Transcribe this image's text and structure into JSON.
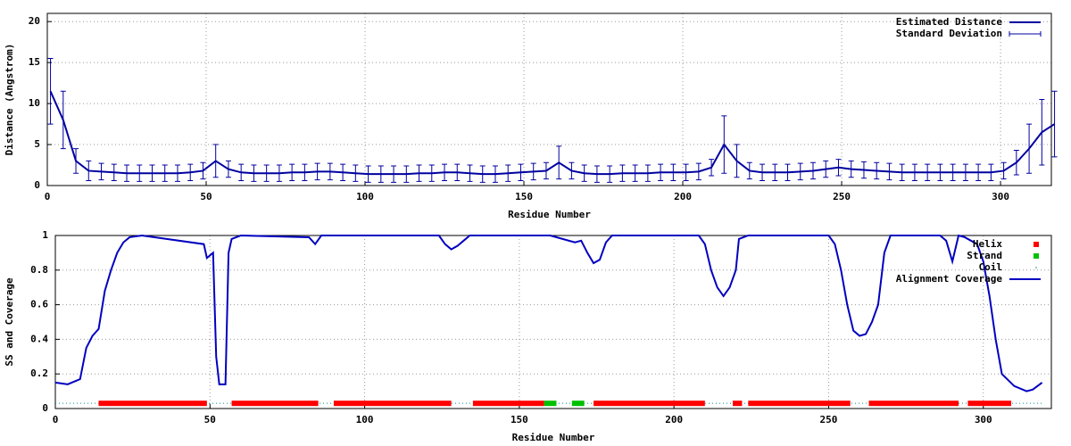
{
  "chart_data": [
    {
      "type": "errorline",
      "xlabel": "Residue Number",
      "ylabel": "Distance (Angstrom)",
      "xlim": [
        0,
        316
      ],
      "ylim": [
        0,
        21
      ],
      "xticks": [
        0,
        50,
        100,
        150,
        200,
        250,
        300
      ],
      "yticks": [
        0,
        5,
        10,
        15,
        20
      ],
      "grid": true,
      "legend": "top-right",
      "x": [
        1,
        5,
        9,
        13,
        17,
        21,
        25,
        29,
        33,
        37,
        41,
        45,
        49,
        53,
        57,
        61,
        65,
        69,
        73,
        77,
        81,
        85,
        89,
        93,
        97,
        101,
        105,
        109,
        113,
        117,
        121,
        125,
        129,
        133,
        137,
        141,
        145,
        149,
        153,
        157,
        161,
        165,
        169,
        173,
        177,
        181,
        185,
        189,
        193,
        197,
        201,
        205,
        209,
        213,
        217,
        221,
        225,
        229,
        233,
        237,
        241,
        245,
        249,
        253,
        257,
        261,
        265,
        269,
        273,
        277,
        281,
        285,
        289,
        293,
        297,
        301,
        305,
        309,
        313,
        317
      ],
      "series": [
        {
          "name": "Estimated Distance",
          "error_name": "Standard Deviation",
          "color": "#0000a0",
          "values": [
            11.5,
            8,
            3,
            1.8,
            1.7,
            1.6,
            1.5,
            1.5,
            1.5,
            1.5,
            1.5,
            1.6,
            1.8,
            3.0,
            2.0,
            1.6,
            1.5,
            1.5,
            1.5,
            1.6,
            1.6,
            1.7,
            1.7,
            1.6,
            1.5,
            1.4,
            1.4,
            1.4,
            1.4,
            1.5,
            1.5,
            1.6,
            1.6,
            1.5,
            1.4,
            1.4,
            1.5,
            1.6,
            1.7,
            1.8,
            2.8,
            1.8,
            1.5,
            1.4,
            1.4,
            1.5,
            1.5,
            1.5,
            1.6,
            1.6,
            1.6,
            1.7,
            2.2,
            5.0,
            3.0,
            1.8,
            1.6,
            1.6,
            1.6,
            1.7,
            1.8,
            2.0,
            2.2,
            2.0,
            1.9,
            1.8,
            1.7,
            1.6,
            1.6,
            1.6,
            1.6,
            1.6,
            1.6,
            1.6,
            1.6,
            1.8,
            2.8,
            4.5,
            6.5,
            7.5
          ],
          "errors": [
            4,
            3.5,
            1.5,
            1.2,
            1,
            1,
            1,
            1,
            1,
            1,
            1,
            1,
            1,
            2,
            1,
            1,
            1,
            1,
            1,
            1,
            1,
            1,
            1,
            1,
            1,
            1,
            1,
            1,
            1,
            1,
            1,
            1,
            1,
            1,
            1,
            1,
            1,
            1,
            1,
            1,
            2,
            1,
            1,
            1,
            1,
            1,
            1,
            1,
            1,
            1,
            1,
            1,
            1,
            3.5,
            2,
            1,
            1,
            1,
            1,
            1,
            1,
            1,
            1,
            1,
            1,
            1,
            1,
            1,
            1,
            1,
            1,
            1,
            1,
            1,
            1,
            1,
            1.5,
            3,
            4,
            4
          ]
        }
      ]
    },
    {
      "type": "ssline",
      "xlabel": "Residue Number",
      "ylabel": "SS and Coverage",
      "xlim": [
        0,
        322
      ],
      "ylim": [
        0,
        1
      ],
      "xticks": [
        0,
        50,
        100,
        150,
        200,
        250,
        300
      ],
      "yticks": [
        0,
        0.2,
        0.4,
        0.6,
        0.8,
        1
      ],
      "grid": true,
      "legend": "top-right",
      "series": [
        {
          "name": "Helix",
          "color": "#ff0000",
          "y": 0.03,
          "ranges": [
            [
              14,
              49
            ],
            [
              57,
              85
            ],
            [
              90,
              128
            ],
            [
              135,
              158
            ],
            [
              174,
              210
            ],
            [
              219,
              222
            ],
            [
              224,
              257
            ],
            [
              263,
              292
            ],
            [
              295,
              309
            ]
          ]
        },
        {
          "name": "Strand",
          "color": "#00c000",
          "y": 0.03,
          "ranges": [
            [
              158,
              162
            ],
            [
              167,
              171
            ]
          ]
        },
        {
          "name": "Coil",
          "color": "#009090",
          "y": 0.03,
          "ranges": [
            [
              0,
              319
            ]
          ]
        },
        {
          "name": "Alignment Coverage",
          "color": "#0000c0",
          "x": [
            0,
            4,
            8,
            10,
            12,
            14,
            16,
            18,
            20,
            22,
            24,
            28,
            48,
            49,
            51,
            52,
            53,
            55,
            56,
            57,
            60,
            82,
            84,
            86,
            124,
            126,
            128,
            130,
            132,
            134,
            160,
            164,
            168,
            170,
            172,
            174,
            176,
            178,
            180,
            208,
            210,
            212,
            214,
            216,
            218,
            220,
            221,
            224,
            250,
            252,
            254,
            256,
            258,
            260,
            262,
            264,
            266,
            268,
            270,
            286,
            288,
            290,
            292,
            294,
            298,
            300,
            302,
            304,
            306,
            310,
            314,
            316,
            319
          ],
          "values": [
            0.15,
            0.14,
            0.17,
            0.35,
            0.42,
            0.46,
            0.68,
            0.8,
            0.9,
            0.96,
            0.99,
            1,
            0.95,
            0.87,
            0.9,
            0.3,
            0.14,
            0.14,
            0.9,
            0.98,
            1,
            0.99,
            0.95,
            1,
            1,
            0.95,
            0.92,
            0.94,
            0.97,
            1,
            1,
            0.98,
            0.96,
            0.97,
            0.9,
            0.84,
            0.86,
            0.96,
            1,
            1,
            0.95,
            0.8,
            0.7,
            0.65,
            0.7,
            0.8,
            0.98,
            1,
            1,
            0.95,
            0.8,
            0.6,
            0.45,
            0.42,
            0.43,
            0.5,
            0.6,
            0.9,
            1,
            1,
            0.97,
            0.85,
            1,
            0.99,
            0.95,
            0.85,
            0.65,
            0.4,
            0.2,
            0.13,
            0.1,
            0.11,
            0.15
          ]
        }
      ]
    }
  ]
}
